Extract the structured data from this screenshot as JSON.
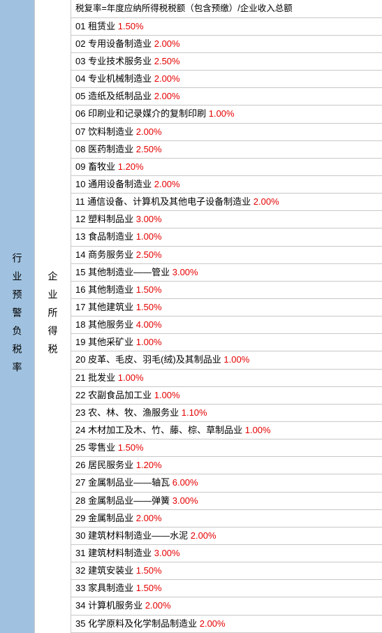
{
  "layout": {
    "left_bg": "#a0c2e0",
    "border_color": "#c8c8c8",
    "rate_color": "#e60000",
    "text_color": "#000000"
  },
  "left_label": "行业预警负税率",
  "mid_label": "企业所得税",
  "header": "税复率=年度应纳所得税税额（包含预缴）/企业收入总额",
  "rows": [
    {
      "num": "01",
      "industry": "租赁业",
      "rate": "1.50%"
    },
    {
      "num": "02",
      "industry": "专用设备制造业",
      "rate": "2.00%"
    },
    {
      "num": "03",
      "industry": "专业技术服务业",
      "rate": "2.50%"
    },
    {
      "num": "04",
      "industry": "专业机械制造业",
      "rate": "2.00%"
    },
    {
      "num": "05",
      "industry": "造纸及纸制品业",
      "rate": "2.00%"
    },
    {
      "num": "06",
      "industry": "印刷业和记录媒介的复制印刷",
      "rate": "1.00%"
    },
    {
      "num": "07",
      "industry": "饮料制造业",
      "rate": "2.00%"
    },
    {
      "num": "08",
      "industry": "医药制造业",
      "rate": "2.50%"
    },
    {
      "num": "09",
      "industry": "畜牧业",
      "rate": "1.20%"
    },
    {
      "num": "10",
      "industry": "通用设备制造业",
      "rate": "2.00%"
    },
    {
      "num": "11",
      "industry": "通信设备、计算机及其他电子设备制造业",
      "rate": "2.00%"
    },
    {
      "num": "12",
      "industry": "塑料制品业",
      "rate": "3.00%"
    },
    {
      "num": "13",
      "industry": "食品制造业",
      "rate": "1.00%"
    },
    {
      "num": "14",
      "industry": "商务服务业",
      "rate": "2.50%"
    },
    {
      "num": "15",
      "industry": "其他制造业——管业",
      "rate": "3.00%"
    },
    {
      "num": "16",
      "industry": "其他制造业",
      "rate": "1.50%"
    },
    {
      "num": "17",
      "industry": "其他建筑业",
      "rate": "1.50%"
    },
    {
      "num": "18",
      "industry": "其他服务业",
      "rate": "4.00%"
    },
    {
      "num": "19",
      "industry": "其他采矿业",
      "rate": "1.00%"
    },
    {
      "num": "20",
      "industry": "皮革、毛皮、羽毛(绒)及其制品业",
      "rate": "1.00%"
    },
    {
      "num": "21",
      "industry": "批发业",
      "rate": "1.00%"
    },
    {
      "num": "22",
      "industry": "农副食品加工业",
      "rate": "1.00%"
    },
    {
      "num": "23",
      "industry": "农、林、牧、渔服务业",
      "rate": "1.10%"
    },
    {
      "num": "24",
      "industry": "木材加工及木、竹、藤、棕、草制品业",
      "rate": "1.00%"
    },
    {
      "num": "25",
      "industry": "零售业",
      "rate": "1.50%"
    },
    {
      "num": "26",
      "industry": "居民服务业",
      "rate": "1.20%"
    },
    {
      "num": "27",
      "industry": "金属制品业——轴瓦",
      "rate": "6.00%"
    },
    {
      "num": "28",
      "industry": "金属制品业——弹簧",
      "rate": "3.00%"
    },
    {
      "num": "29",
      "industry": "金属制品业",
      "rate": "2.00%"
    },
    {
      "num": "30",
      "industry": "建筑材料制造业——水泥",
      "rate": "2.00%"
    },
    {
      "num": "31",
      "industry": "建筑材料制造业",
      "rate": "3.00%"
    },
    {
      "num": "32",
      "industry": "建筑安装业",
      "rate": "1.50%"
    },
    {
      "num": "33",
      "industry": "家具制造业",
      "rate": "1.50%"
    },
    {
      "num": "34",
      "industry": "计算机服务业",
      "rate": "2.00%"
    },
    {
      "num": "35",
      "industry": "化学原料及化学制品制造业",
      "rate": "2.00%"
    }
  ]
}
